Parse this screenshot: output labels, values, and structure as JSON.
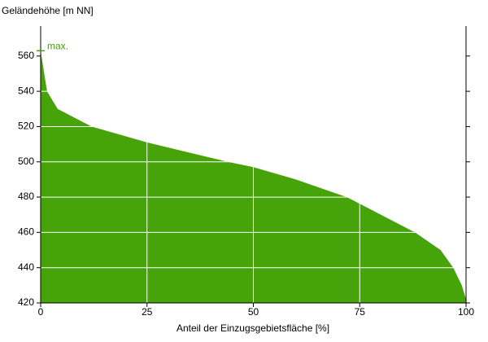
{
  "chart_data": {
    "type": "area",
    "y_label": "Geländehöhe [m NN]",
    "x_label": "Anteil der Einzugsgebietsfläche [%]",
    "x": [
      0,
      1.5,
      4,
      12,
      25,
      44,
      50,
      60,
      72,
      80,
      88,
      94,
      97,
      99,
      100
    ],
    "values": [
      563,
      540,
      530,
      520,
      511,
      500,
      497,
      490,
      480,
      470,
      460,
      450,
      440,
      430,
      422
    ],
    "color": "#47a30a",
    "xlim": [
      0,
      100
    ],
    "xticks": [
      0,
      25,
      50,
      75,
      100
    ],
    "ylim": [
      420,
      577
    ],
    "yticks": [
      420,
      440,
      460,
      480,
      500,
      520,
      540,
      560
    ],
    "grid": true,
    "annotation": {
      "text": "max.",
      "y": 563
    }
  }
}
